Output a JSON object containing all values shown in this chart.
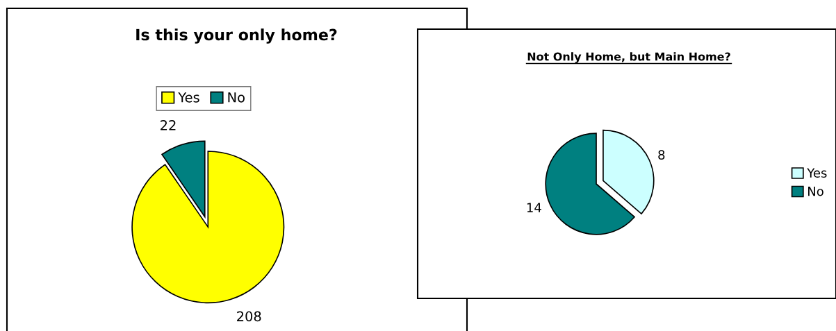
{
  "chart_data": [
    {
      "type": "pie",
      "title": "Is this your only home?",
      "categories": [
        "Yes",
        "No"
      ],
      "values": [
        208,
        22
      ],
      "colors": [
        "#ffff00",
        "#008080"
      ],
      "data_labels": true,
      "legend": "top"
    },
    {
      "type": "pie",
      "title": "Not Only Home, but Main Home?",
      "categories": [
        "Yes",
        "No"
      ],
      "values": [
        8,
        14
      ],
      "colors": [
        "#ccffff",
        "#008080"
      ],
      "data_labels": true,
      "legend": "right"
    }
  ]
}
